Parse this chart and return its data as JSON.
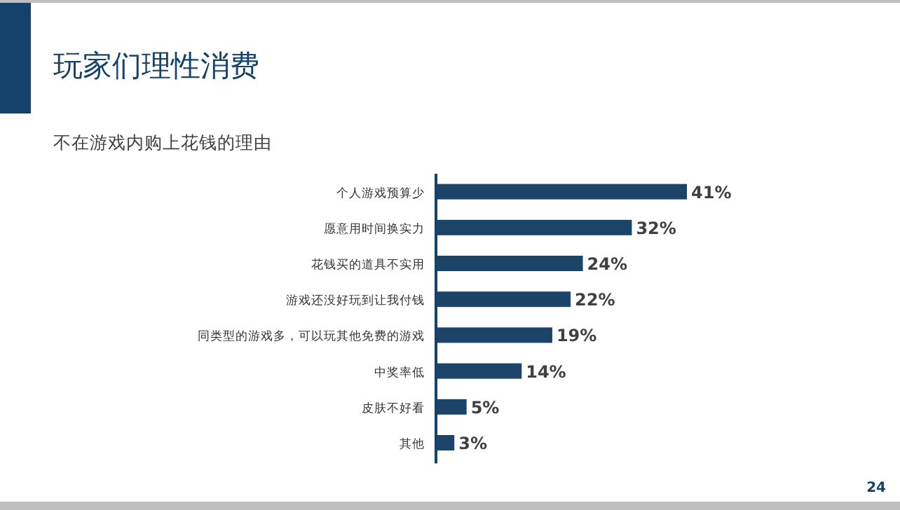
{
  "chart_data": {
    "type": "bar",
    "orientation": "horizontal",
    "title": "玩家们理性消费",
    "subtitle": "不在游戏内购上花钱的理由",
    "categories": [
      "个人游戏预算少",
      "愿意用时间换实力",
      "花钱买的道具不实用",
      "游戏还没好玩到让我付钱",
      "同类型的游戏多，可以玩其他免费的游戏",
      "中奖率低",
      "皮肤不好看",
      "其他"
    ],
    "values": [
      41,
      32,
      24,
      22,
      19,
      14,
      5,
      3
    ],
    "value_labels": [
      "41%",
      "32%",
      "24%",
      "22%",
      "19%",
      "14%",
      "5%",
      "3%"
    ],
    "color": "#1b4468",
    "annotations": [
      "24"
    ]
  }
}
